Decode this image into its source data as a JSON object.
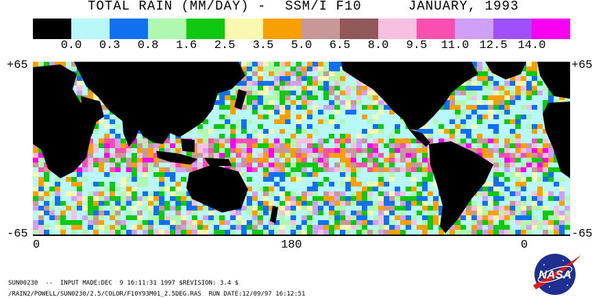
{
  "title": {
    "part1": "TOTAL RAIN (MM/DAY)",
    "dash": "-",
    "sensor": "SSM/I F10",
    "date": "JANUARY, 1993"
  },
  "legend": {
    "colors": [
      "#000000",
      "#b8f8f8",
      "#1070f0",
      "#b0f8b0",
      "#10c810",
      "#f8f8b0",
      "#f8a000",
      "#c89898",
      "#905858",
      "#f8c0e0",
      "#f850b0",
      "#d0a0f8",
      "#a050f8",
      "#f800f0"
    ],
    "labels": [
      "0.0",
      "0.3",
      "0.8",
      "1.6",
      "2.5",
      "3.5",
      "5.0",
      "6.5",
      "8.0",
      "9.5",
      "11.0",
      "12.5",
      "14.0"
    ]
  },
  "axes": {
    "lat_top": "+65",
    "lat_bottom": "-65",
    "lon_left": "0",
    "lon_mid": "180",
    "lon_right": "0"
  },
  "footer": {
    "line1": "SUN00230  --  INPUT MADE:DEC  9 16:11:31 1997 $REVISION: 3.4 $",
    "line2": "/RAIN2/POWELL/SUN0230/2.5/COLOR/F10Y93M01_2.5DEG.RAS  RUN DATE:12/09/97 16:12:51"
  },
  "logo": {
    "text": "NASA"
  }
}
